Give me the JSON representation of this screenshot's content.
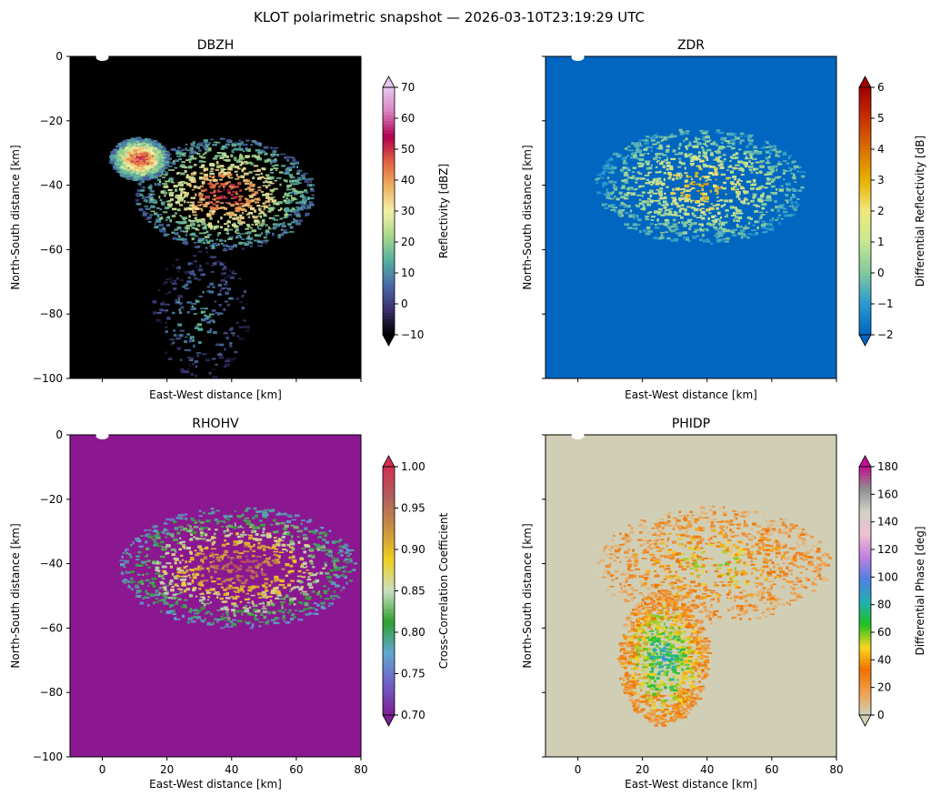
{
  "figure": {
    "title": "KLOT polarimetric snapshot — 2026-03-10T23:19:29 UTC"
  },
  "chart_data": [
    {
      "type": "heatmap",
      "title": "DBZH",
      "xlabel": "East-West distance [km]",
      "ylabel": "North-South distance [km]",
      "xlim": [
        -10,
        80
      ],
      "ylim": [
        -100,
        0
      ],
      "xticks": [
        0,
        20,
        40,
        60,
        80
      ],
      "yticks": [
        0,
        -20,
        -40,
        -60,
        -80,
        -100
      ],
      "show_x_tick_labels": false,
      "show_y_tick_labels": true,
      "colorbar": {
        "label": "Reflectivity [dBZ]",
        "range": [
          -10,
          70
        ],
        "ticks": [
          -10,
          0,
          10,
          20,
          30,
          40,
          50,
          60,
          70
        ],
        "extend": "both",
        "colormap": [
          "#000000",
          "#3b2f6b",
          "#4a6aa8",
          "#55b0a0",
          "#a8d88a",
          "#f5f0a8",
          "#f0b060",
          "#e06040",
          "#b00050",
          "#d880c0",
          "#e8c8f0"
        ]
      },
      "background": "#000000",
      "features": [
        {
          "kind": "stratiform core",
          "x": [
            10,
            65
          ],
          "y": [
            -60,
            -25
          ],
          "peak": 52
        },
        {
          "kind": "cell cluster",
          "x": [
            2,
            20
          ],
          "y": [
            -38,
            -25
          ],
          "peak": 55
        },
        {
          "kind": "outflow",
          "x": [
            15,
            45
          ],
          "y": [
            -100,
            -60
          ],
          "peak": 15
        }
      ]
    },
    {
      "type": "heatmap",
      "title": "ZDR",
      "xlabel": "East-West distance [km]",
      "ylabel": "North-South distance [km]",
      "xlim": [
        -10,
        80
      ],
      "ylim": [
        -100,
        0
      ],
      "xticks": [
        0,
        20,
        40,
        60,
        80
      ],
      "yticks": [
        0,
        -20,
        -40,
        -60,
        -80,
        -100
      ],
      "show_x_tick_labels": false,
      "show_y_tick_labels": false,
      "colorbar": {
        "label": "Differential Reflectivity [dB]",
        "range": [
          -2,
          6
        ],
        "ticks": [
          -2,
          -1,
          0,
          1,
          2,
          3,
          4,
          5,
          6
        ],
        "extend": "both",
        "colormap": [
          "#0066c0",
          "#2a9ad0",
          "#80c8a0",
          "#c8e890",
          "#f0e880",
          "#e8b000",
          "#d87000",
          "#c83000",
          "#a00000"
        ]
      },
      "background": "#0066c0",
      "features": [
        {
          "kind": "positive ZDR region",
          "x": [
            5,
            70
          ],
          "y": [
            -58,
            -22
          ],
          "peak": 3
        }
      ]
    },
    {
      "type": "heatmap",
      "title": "RHOHV",
      "xlabel": "East-West distance [km]",
      "ylabel": "North-South distance [km]",
      "xlim": [
        -10,
        80
      ],
      "ylim": [
        -100,
        0
      ],
      "xticks": [
        0,
        20,
        40,
        60,
        80
      ],
      "yticks": [
        0,
        -20,
        -40,
        -60,
        -80,
        -100
      ],
      "show_x_tick_labels": true,
      "show_y_tick_labels": true,
      "colorbar": {
        "label": "Cross-Correlation Coefficient",
        "range": [
          0.7,
          1.0
        ],
        "ticks": [
          0.7,
          0.75,
          0.8,
          0.85,
          0.9,
          0.95,
          1.0
        ],
        "tick_labels": [
          "0.70",
          "0.75",
          "0.80",
          "0.85",
          "0.90",
          "0.95",
          "1.00"
        ],
        "extend": "both",
        "colormap": [
          "#7a2090",
          "#7060c8",
          "#60a8d0",
          "#30a030",
          "#c8e0c0",
          "#f0d020",
          "#c89040",
          "#b06060",
          "#d03050"
        ]
      },
      "background": "#8b1890",
      "features": [
        {
          "kind": "high correlation region",
          "x": [
            5,
            78
          ],
          "y": [
            -60,
            -22
          ],
          "peak": 0.98
        }
      ]
    },
    {
      "type": "heatmap",
      "title": "PHIDP",
      "xlabel": "East-West distance [km]",
      "ylabel": "North-South distance [km]",
      "xlim": [
        -10,
        80
      ],
      "ylim": [
        -100,
        0
      ],
      "xticks": [
        0,
        20,
        40,
        60,
        80
      ],
      "yticks": [
        0,
        -20,
        -40,
        -60,
        -80,
        -100
      ],
      "show_x_tick_labels": true,
      "show_y_tick_labels": false,
      "colorbar": {
        "label": "Differential Phase [deg]",
        "range": [
          0,
          180
        ],
        "ticks": [
          0,
          20,
          40,
          60,
          80,
          100,
          120,
          140,
          160,
          180
        ],
        "extend": "both",
        "colormap": [
          "#d0d0b8",
          "#f0a050",
          "#f07000",
          "#f8d820",
          "#20c020",
          "#20b0b0",
          "#5080e0",
          "#c080e0",
          "#f0c0d0",
          "#d0d0c8",
          "#909090",
          "#c01090"
        ]
      },
      "background": "#d0cfb5",
      "features": [
        {
          "kind": "phase shift region",
          "x": [
            5,
            78
          ],
          "y": [
            -58,
            -22
          ],
          "peak": 50
        },
        {
          "kind": "high phase core",
          "x": [
            12,
            40
          ],
          "y": [
            -90,
            -48
          ],
          "peak": 85
        }
      ]
    }
  ]
}
